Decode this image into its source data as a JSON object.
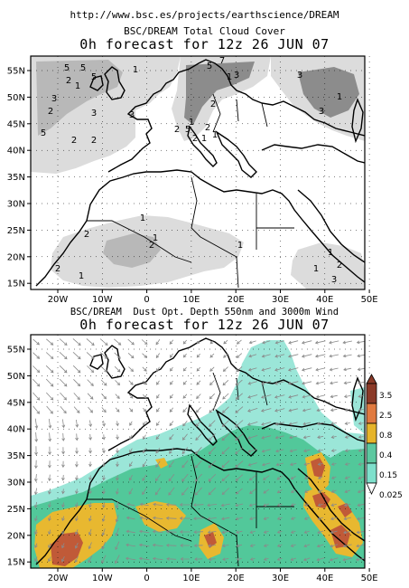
{
  "header": {
    "url": "http://www.bsc.es/projects/earthscience/DREAM"
  },
  "map_top": {
    "title": "BSC/DREAM Total Cloud Cover",
    "subtitle": "0h forecast for 12z 26 JUN 07",
    "contour_labels": [
      "5",
      "5",
      "5",
      "2",
      "5",
      "3",
      "2",
      "1",
      "3",
      "2",
      "3",
      "5",
      "2",
      "1",
      "2",
      "1",
      "5",
      "7",
      "2",
      "1",
      "3",
      "2",
      "1",
      "3",
      "3",
      "1",
      "1",
      "1",
      "2",
      "2",
      "1",
      "1",
      "2",
      "2",
      "1",
      "1",
      "3",
      "1",
      "2"
    ]
  },
  "map_bottom": {
    "title_left": "BSC/DREAM",
    "title_right": "Dust Opt. Depth 550nm and 3000m Wind",
    "subtitle": "0h forecast for 12z 26 JUN 07"
  },
  "axes": {
    "lat_labels": [
      "55N",
      "50N",
      "45N",
      "40N",
      "35N",
      "30N",
      "25N",
      "20N",
      "15N"
    ],
    "lon_labels": [
      "20W",
      "10W",
      "0",
      "10E",
      "20E",
      "30E",
      "40E",
      "50E"
    ]
  },
  "colorbar": {
    "levels": [
      "3.5",
      "2.5",
      "0.8",
      "0.4",
      "0.15",
      "0.025"
    ],
    "colors": [
      "#8b3a28",
      "#e07a40",
      "#e6b42a",
      "#5cc8a0",
      "#7ee0cc",
      "#ffffff"
    ]
  },
  "colors": {
    "cloud_light": "#dcdcdc",
    "cloud_mid": "#b8b8b8",
    "cloud_dark": "#8c8c8c",
    "dust_low": "#9be6d8",
    "dust_mid": "#52c89a",
    "dust_high": "#e8b830",
    "dust_max": "#c05a38",
    "wind": "#8a8a8a"
  }
}
